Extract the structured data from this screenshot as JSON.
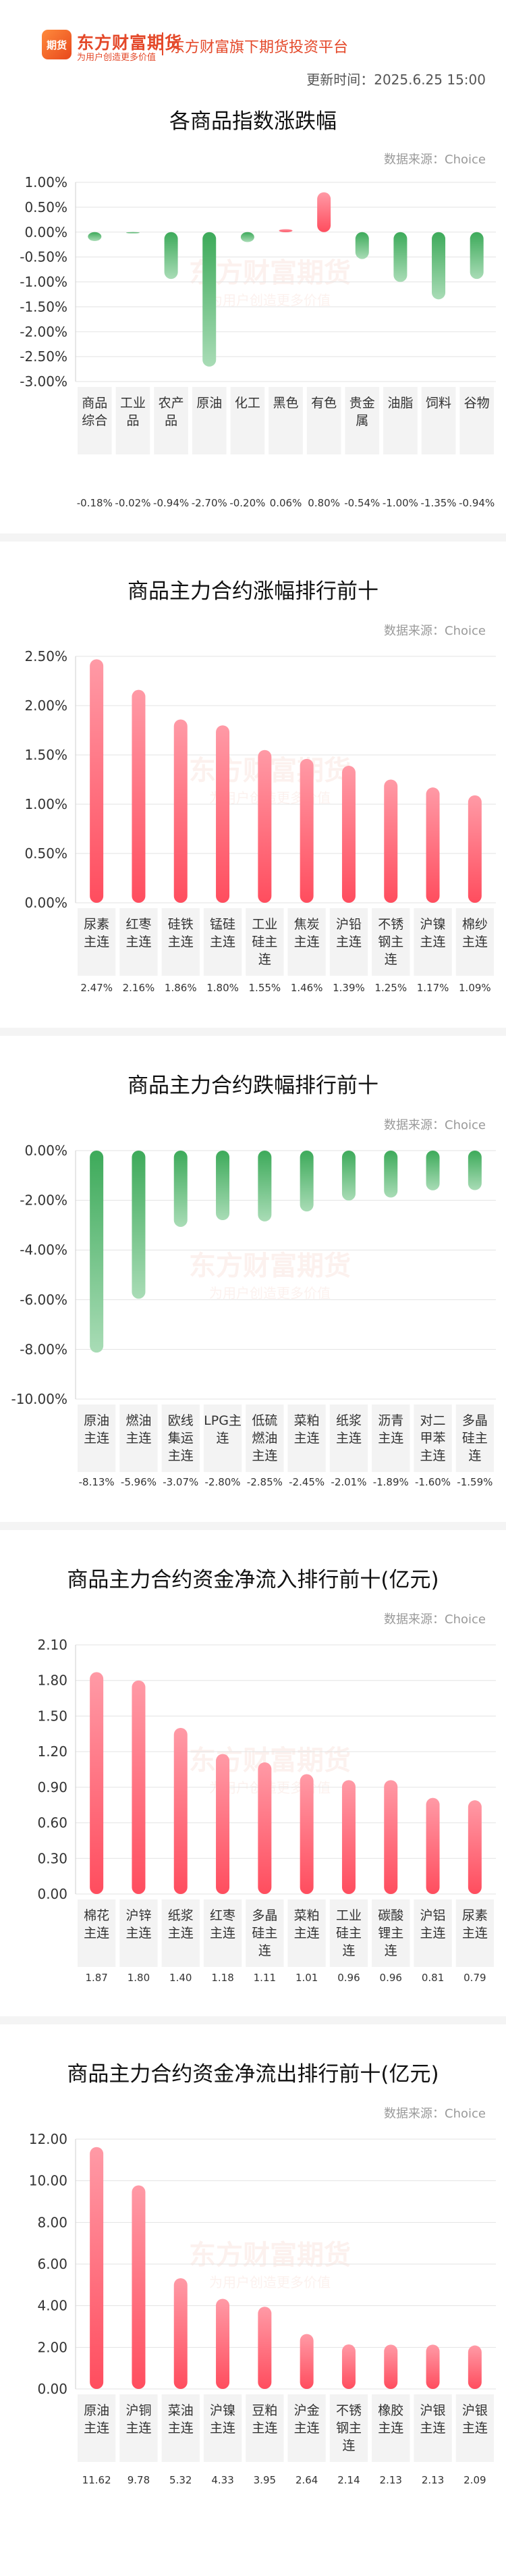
{
  "header": {
    "logo_text": "期货",
    "brand_name": "东方财富期货",
    "brand_slogan": "为用户创造更多价值",
    "platform": "东方财富旗下期货投资平台",
    "update_time": "更新时间：2025.6.25 15:00",
    "watermark_text": "东方财富期货",
    "watermark_sub": "为用户创造更多价值"
  },
  "colors": {
    "up": "#ff4d5e",
    "down": "#3daa5a",
    "grid": "#e3e3e3",
    "label_bg": "#f3f3f3"
  },
  "charts": [
    {
      "title": "各商品指数涨跌幅",
      "source": "数据来源：Choice"
    },
    {
      "title": "商品主力合约涨幅排行前十",
      "source": "数据来源：Choice"
    },
    {
      "title": "商品主力合约跌幅排行前十",
      "source": "数据来源：Choice"
    },
    {
      "title": "商品主力合约资金净流入排行前十(亿元)",
      "source": "数据来源：Choice"
    },
    {
      "title": "商品主力合约资金净流出排行前十(亿元)",
      "source": "数据来源：Choice"
    }
  ],
  "chart_data": [
    {
      "type": "bar",
      "title": "各商品指数涨跌幅",
      "categories": [
        "商品综合",
        "工业品",
        "农产品",
        "原油",
        "化工",
        "黑色",
        "有色",
        "贵金属",
        "油脂",
        "饲料",
        "谷物"
      ],
      "values": [
        -0.18,
        -0.02,
        -0.94,
        -2.7,
        -0.2,
        0.06,
        0.8,
        -0.54,
        -1.0,
        -1.35,
        -0.94
      ],
      "value_labels": [
        "-0.18%",
        "-0.02%",
        "-0.94%",
        "-2.70%",
        "-0.20%",
        "0.06%",
        "0.80%",
        "-0.54%",
        "-1.00%",
        "-1.35%",
        "-0.94%"
      ],
      "y_ticks": [
        "1.00%",
        "0.50%",
        "0.00%",
        "-0.50%",
        "-1.00%",
        "-1.50%",
        "-2.00%",
        "-2.50%",
        "-3.00%"
      ],
      "ylim": [
        -3.0,
        1.0
      ],
      "grid": true
    },
    {
      "type": "bar",
      "title": "商品主力合约涨幅排行前十",
      "categories": [
        "尿素主连",
        "红枣主连",
        "硅铁主连",
        "锰硅主连",
        "工业硅主连",
        "焦炭主连",
        "沪铅主连",
        "不锈钢主连",
        "沪镍主连",
        "棉纱主连"
      ],
      "values": [
        2.47,
        2.16,
        1.86,
        1.8,
        1.55,
        1.46,
        1.39,
        1.25,
        1.17,
        1.09
      ],
      "value_labels": [
        "2.47%",
        "2.16%",
        "1.86%",
        "1.80%",
        "1.55%",
        "1.46%",
        "1.39%",
        "1.25%",
        "1.17%",
        "1.09%"
      ],
      "y_ticks": [
        "2.50%",
        "2.00%",
        "1.50%",
        "1.00%",
        "0.50%",
        "0.00%"
      ],
      "ylim": [
        0,
        2.5
      ],
      "grid": true
    },
    {
      "type": "bar",
      "title": "商品主力合约跌幅排行前十",
      "categories": [
        "原油主连",
        "燃油主连",
        "欧线集运主连",
        "LPG主连",
        "低硫燃油主连",
        "菜粕主连",
        "纸浆主连",
        "沥青主连",
        "对二甲苯主连",
        "多晶硅主连"
      ],
      "values": [
        -8.13,
        -5.96,
        -3.07,
        -2.8,
        -2.85,
        -2.45,
        -2.01,
        -1.89,
        -1.6,
        -1.59
      ],
      "value_labels": [
        "-8.13%",
        "-5.96%",
        "-3.07%",
        "-2.80%",
        "-2.85%",
        "-2.45%",
        "-2.01%",
        "-1.89%",
        "-1.60%",
        "-1.59%"
      ],
      "y_ticks": [
        "0.00%",
        "-2.00%",
        "-4.00%",
        "-6.00%",
        "-8.00%",
        "-10.00%"
      ],
      "ylim": [
        -10,
        0
      ],
      "grid": true
    },
    {
      "type": "bar",
      "title": "商品主力合约资金净流入排行前十(亿元)",
      "categories": [
        "棉花主连",
        "沪锌主连",
        "纸浆主连",
        "红枣主连",
        "多晶硅主连",
        "菜粕主连",
        "工业硅主连",
        "碳酸锂主连",
        "沪铝主连",
        "尿素主连"
      ],
      "values": [
        1.87,
        1.8,
        1.4,
        1.18,
        1.11,
        1.01,
        0.96,
        0.96,
        0.81,
        0.79
      ],
      "value_labels": [
        "1.87",
        "1.80",
        "1.40",
        "1.18",
        "1.11",
        "1.01",
        "0.96",
        "0.96",
        "0.81",
        "0.79"
      ],
      "y_ticks": [
        "2.10",
        "1.80",
        "1.50",
        "1.20",
        "0.90",
        "0.60",
        "0.30",
        "0.00"
      ],
      "ylim": [
        0,
        2.1
      ],
      "grid": true
    },
    {
      "type": "bar",
      "title": "商品主力合约资金净流出排行前十(亿元)",
      "categories": [
        "原油主连",
        "沪铜主连",
        "菜油主连",
        "沪镍主连",
        "豆粕主连",
        "沪金主连",
        "不锈钢主连",
        "橡胶主连",
        "沪银主连",
        "沪银主连"
      ],
      "values": [
        11.62,
        9.78,
        5.32,
        4.33,
        3.95,
        2.64,
        2.14,
        2.13,
        2.13,
        2.09
      ],
      "value_labels": [
        "11.62",
        "9.78",
        "5.32",
        "4.33",
        "3.95",
        "2.64",
        "2.14",
        "2.13",
        "2.13",
        "2.09"
      ],
      "y_ticks": [
        "12.00",
        "10.00",
        "8.00",
        "6.00",
        "4.00",
        "2.00",
        "0.00"
      ],
      "ylim": [
        0,
        12
      ],
      "grid": true
    }
  ]
}
